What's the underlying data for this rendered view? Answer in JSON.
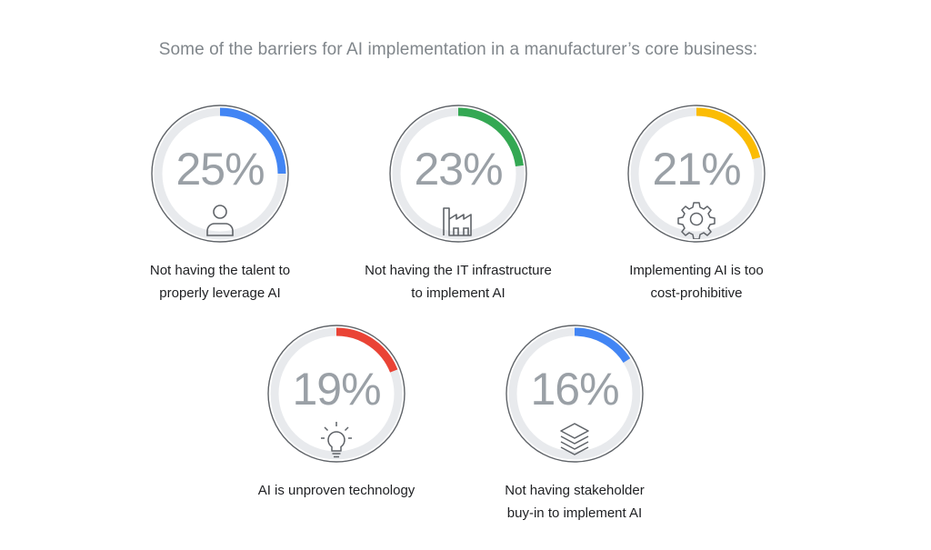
{
  "title": "Some of the barriers for AI implementation in a manufacturer’s core business:",
  "colors": {
    "ring_base": "#e8eaed",
    "ring_outline": "#5f6368",
    "text_gray": "#9aa0a6"
  },
  "chart_data": {
    "type": "pie",
    "title": "Some of the barriers for AI implementation in a manufacturer’s core business:",
    "items": [
      {
        "value": 25,
        "display": "25%",
        "label_lines": [
          "Not having the talent to",
          "properly leverage AI"
        ],
        "color": "#4285f4",
        "icon": "person-icon"
      },
      {
        "value": 23,
        "display": "23%",
        "label_lines": [
          "Not having the IT infrastructure",
          "to implement AI"
        ],
        "color": "#34a853",
        "icon": "factory-icon"
      },
      {
        "value": 21,
        "display": "21%",
        "label_lines": [
          "Implementing AI is too",
          "cost-prohibitive"
        ],
        "color": "#fbbc04",
        "icon": "gear-icon"
      },
      {
        "value": 19,
        "display": "19%",
        "label_lines": [
          "AI is unproven technology"
        ],
        "color": "#ea4335",
        "icon": "lightbulb-icon"
      },
      {
        "value": 16,
        "display": "16%",
        "label_lines": [
          "Not having stakeholder",
          "buy-in to implement AI"
        ],
        "color": "#4285f4",
        "icon": "layers-icon"
      }
    ]
  }
}
